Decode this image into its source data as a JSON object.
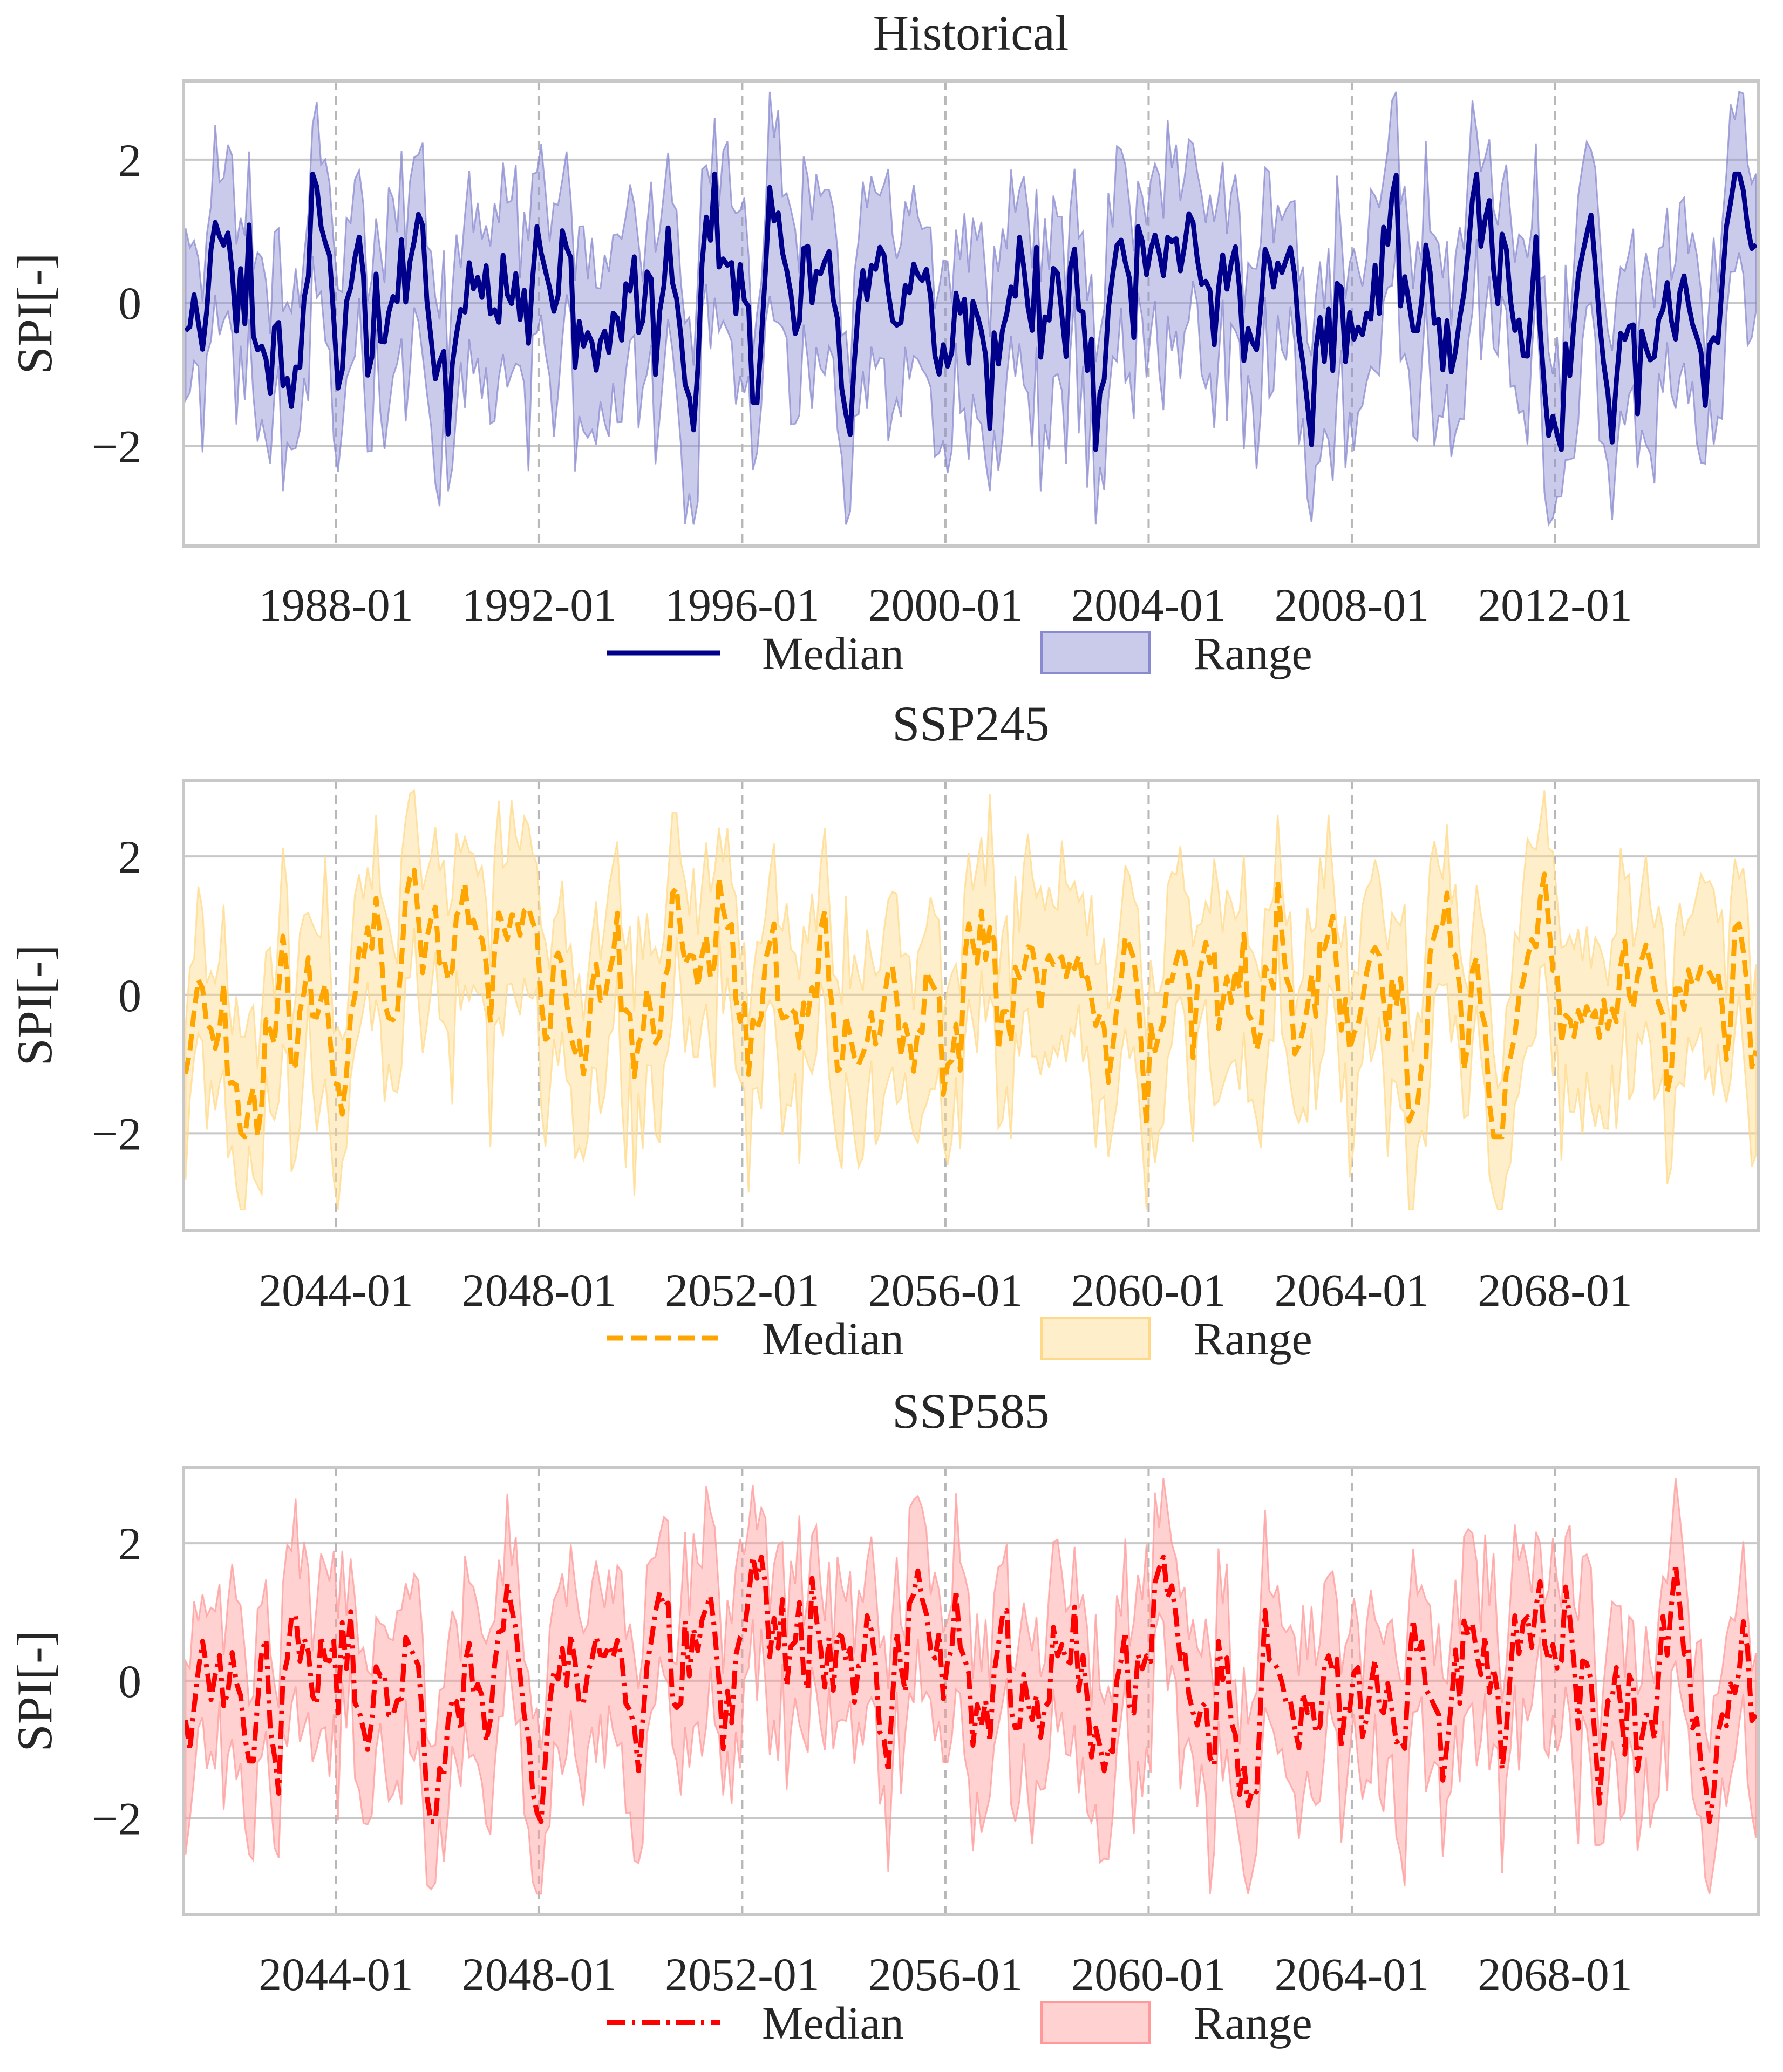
{
  "chart_data": [
    {
      "type": "line",
      "title": "Historical",
      "ylabel": "SPI[-]",
      "xlabel": "",
      "x_start": "1985-01",
      "x_end": "2015-12",
      "x_step": "monthly",
      "xlim_years": [
        1985,
        2016
      ],
      "ylim": [
        -3.4,
        3.1
      ],
      "yticks": [
        2,
        0,
        -2
      ],
      "ytick_labels": [
        "2",
        "0",
        "−2"
      ],
      "xticks_years": [
        1988,
        1992,
        1996,
        2000,
        2004,
        2008,
        2012
      ],
      "xtick_labels": [
        "1988-01",
        "1992-01",
        "1996-01",
        "2000-01",
        "2004-01",
        "2008-01",
        "2012-01"
      ],
      "grid": true,
      "legend_position": "bottom-center",
      "legend": [
        "Median",
        "Range"
      ],
      "line_style": "solid",
      "line_color": "#00008b",
      "band_color": "#8a8ad0",
      "seed": 11,
      "series": [
        {
          "name": "Median",
          "summary": "SPI median oscillates roughly between -2.0 and 1.8 around 0"
        },
        {
          "name": "Range",
          "summary": "envelope spans roughly -3.0 to 2.7"
        }
      ]
    },
    {
      "type": "line",
      "title": "SSP245",
      "ylabel": "SPI[-]",
      "xlabel": "",
      "x_start": "2041-01",
      "x_end": "2071-12",
      "x_step": "monthly",
      "xlim_years": [
        2041,
        2072
      ],
      "ylim": [
        -3.4,
        3.1
      ],
      "yticks": [
        2,
        0,
        -2
      ],
      "ytick_labels": [
        "2",
        "0",
        "−2"
      ],
      "xticks_years": [
        2044,
        2048,
        2052,
        2056,
        2060,
        2064,
        2068
      ],
      "xtick_labels": [
        "2044-01",
        "2048-01",
        "2052-01",
        "2056-01",
        "2060-01",
        "2064-01",
        "2068-01"
      ],
      "grid": true,
      "legend_position": "bottom-center",
      "legend": [
        "Median",
        "Range"
      ],
      "line_style": "dashed",
      "line_color": "#ffa500",
      "band_color": "#ffd98a",
      "seed": 23,
      "series": [
        {
          "name": "Median",
          "summary": "SPI median oscillates roughly between -1.7 and 1.8 around 0"
        },
        {
          "name": "Range",
          "summary": "envelope spans roughly -3.0 to 3.0"
        }
      ]
    },
    {
      "type": "line",
      "title": "SSP585",
      "ylabel": "SPI[-]",
      "xlabel": "",
      "x_start": "2041-01",
      "x_end": "2071-12",
      "x_step": "monthly",
      "xlim_years": [
        2041,
        2072
      ],
      "ylim": [
        -3.4,
        3.1
      ],
      "yticks": [
        2,
        0,
        -2
      ],
      "ytick_labels": [
        "2",
        "0",
        "−2"
      ],
      "xticks_years": [
        2044,
        2048,
        2052,
        2056,
        2060,
        2064,
        2068
      ],
      "xtick_labels": [
        "2044-01",
        "2048-01",
        "2052-01",
        "2056-01",
        "2060-01",
        "2064-01",
        "2068-01"
      ],
      "grid": true,
      "legend_position": "bottom-center",
      "legend": [
        "Median",
        "Range"
      ],
      "line_style": "dashdot",
      "line_color": "#ff0000",
      "band_color": "#ff9a9a",
      "seed": 37,
      "series": [
        {
          "name": "Median",
          "summary": "SPI median oscillates roughly between -2.1 and 1.7 around 0"
        },
        {
          "name": "Range",
          "summary": "envelope spans roughly -3.1 to 2.9"
        }
      ]
    }
  ]
}
